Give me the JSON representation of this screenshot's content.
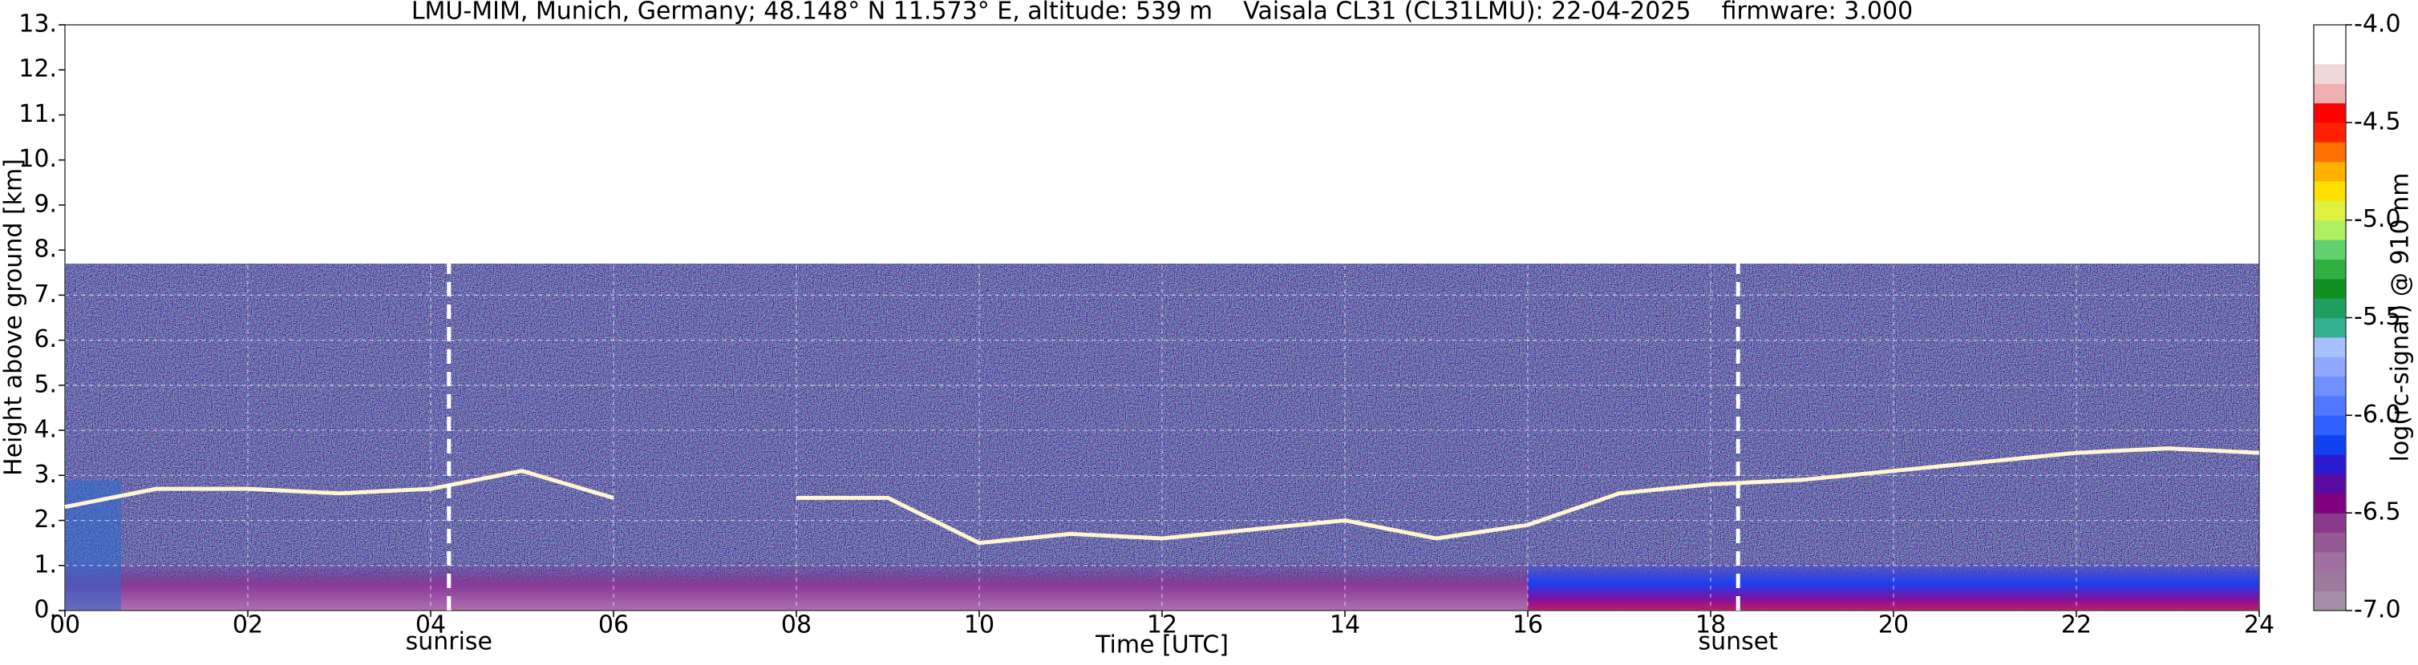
{
  "chart_data": {
    "type": "ceilometer",
    "title": "LMU-MIM, Munich, Germany; 48.148° N 11.573° E, altitude: 539 m    Vaisala CL31 (CL31LMU): 22-04-2025    firmware: 3.000",
    "x_label": "Time [UTC]",
    "y_label": "Height above ground [km]",
    "colorbar_label": "log(rc-signal) @ 910 nm",
    "xlim": [
      0,
      24
    ],
    "xticks": [
      {
        "value": 0,
        "label": "00"
      },
      {
        "value": 2,
        "label": "02"
      },
      {
        "value": 4,
        "label": "04"
      },
      {
        "value": 6,
        "label": "06"
      },
      {
        "value": 8,
        "label": "08"
      },
      {
        "value": 10,
        "label": "10"
      },
      {
        "value": 12,
        "label": "12"
      },
      {
        "value": 14,
        "label": "14"
      },
      {
        "value": 16,
        "label": "16"
      },
      {
        "value": 18,
        "label": "18"
      },
      {
        "value": 20,
        "label": "20"
      },
      {
        "value": 22,
        "label": "22"
      },
      {
        "value": 24,
        "label": "24"
      }
    ],
    "ylim": [
      0,
      13
    ],
    "yticks": [
      {
        "value": 0,
        "label": "0."
      },
      {
        "value": 1,
        "label": "1."
      },
      {
        "value": 2,
        "label": "2."
      },
      {
        "value": 3,
        "label": "3."
      },
      {
        "value": 4,
        "label": "4."
      },
      {
        "value": 5,
        "label": "5."
      },
      {
        "value": 6,
        "label": "6."
      },
      {
        "value": 7,
        "label": "7."
      },
      {
        "value": 8,
        "label": "8."
      },
      {
        "value": 9,
        "label": "9."
      },
      {
        "value": 10,
        "label": "10."
      },
      {
        "value": 11,
        "label": "11."
      },
      {
        "value": 12,
        "label": "12."
      },
      {
        "value": 13,
        "label": "13."
      }
    ],
    "grid": true,
    "annotations": [
      {
        "text": "sunrise",
        "x": 4.2
      },
      {
        "text": "sunset",
        "x": 18.3
      }
    ],
    "series": [
      {
        "color": "#fff6d0",
        "x": [
          0,
          1,
          2,
          3,
          4,
          5,
          6,
          7,
          8,
          9,
          10,
          11,
          12,
          13,
          14,
          15,
          16,
          17,
          18,
          19,
          20,
          21,
          22,
          23,
          24
        ],
        "values": [
          2.3,
          2.7,
          2.7,
          2.6,
          2.7,
          3.1,
          2.5,
          null,
          2.5,
          2.5,
          1.5,
          1.7,
          1.6,
          1.8,
          2.0,
          1.6,
          1.9,
          2.6,
          2.8,
          2.9,
          3.1,
          3.3,
          3.5,
          3.6,
          3.5
        ]
      }
    ],
    "clim": [
      -7,
      -4
    ],
    "cticks": [
      {
        "value": -4,
        "label": "-4.0"
      },
      {
        "value": -4.5,
        "label": "-4.5"
      },
      {
        "value": -5,
        "label": "-5.0"
      },
      {
        "value": -5.5,
        "label": "-5.5"
      },
      {
        "value": -6,
        "label": "-6.0"
      },
      {
        "value": -6.5,
        "label": "-6.5"
      },
      {
        "value": -7,
        "label": "-7.0"
      }
    ],
    "colormap": [
      "#a690a8",
      "#9b7a9e",
      "#a070a0",
      "#955a95",
      "#8a3a8a",
      "#800080",
      "#5a0aa0",
      "#2a1ad0",
      "#1040f0",
      "#3060ff",
      "#5078ff",
      "#7090ff",
      "#90a8ff",
      "#a8c0ff",
      "#30b090",
      "#20a060",
      "#109020",
      "#30b040",
      "#60d070",
      "#b0f060",
      "#e0f040",
      "#ffe000",
      "#ffb000",
      "#ff7000",
      "#ff2000",
      "#ff0000",
      "#f0b0b0",
      "#f0d8d8",
      "#ffffff",
      "#ffffff"
    ]
  }
}
